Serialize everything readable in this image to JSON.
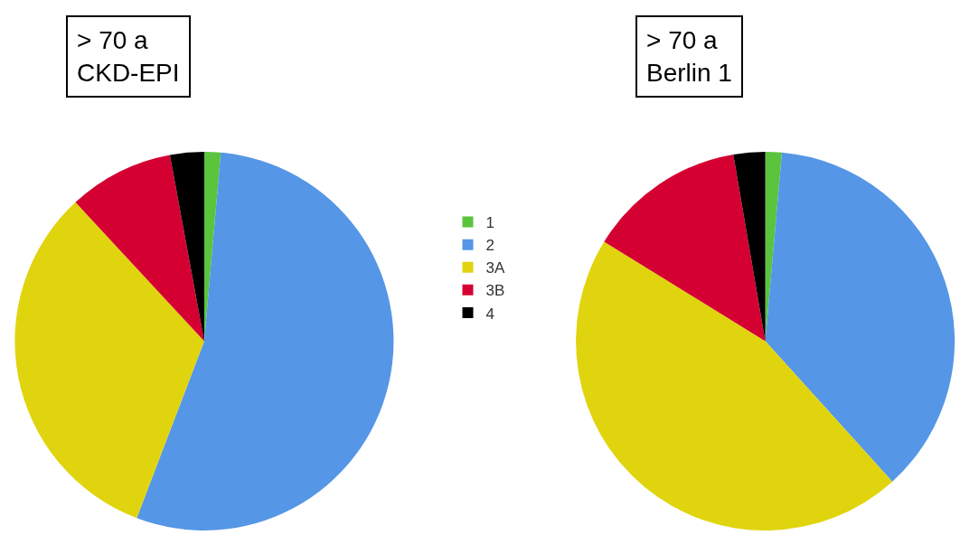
{
  "chart_data": [
    {
      "type": "pie",
      "title": "> 70 a\nCKD-EPI",
      "categories": [
        "1",
        "2",
        "3A",
        "3B",
        "4"
      ],
      "values": [
        1.4,
        54.4,
        32.3,
        9.0,
        2.9
      ],
      "colors": [
        "#5ac43c",
        "#5596e6",
        "#e0d40e",
        "#d50032",
        "#000000"
      ],
      "legend": "center"
    },
    {
      "type": "pie",
      "title": "> 70 a\nBerlin 1",
      "categories": [
        null,
        null,
        null,
        null,
        null
      ],
      "values": [
        1.4,
        36.9,
        45.5,
        13.5,
        2.7
      ],
      "colors": [
        "#5ac43c",
        "#5596e6",
        "#e0d40e",
        "#d50032",
        "#000000"
      ]
    }
  ]
}
